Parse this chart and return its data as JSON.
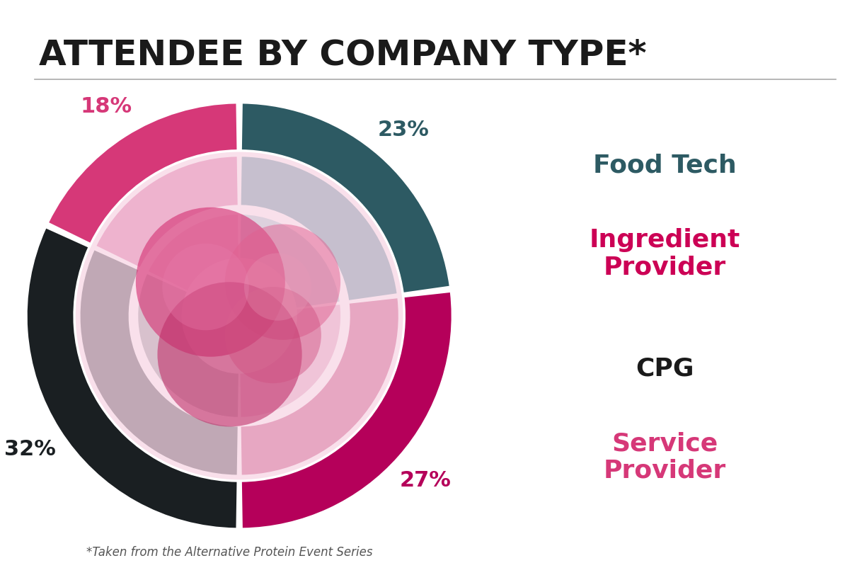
{
  "title": "ATTENDEE BY COMPANY TYPE*",
  "subtitle": "*Taken from the Alternative Protein Event Series",
  "segments": [
    {
      "label": "Food Tech",
      "pct": 23,
      "color": "#2d5a63",
      "pct_color": "#2d5a63"
    },
    {
      "label": "Service\nProvider",
      "pct": 27,
      "color": "#b5005a",
      "pct_color": "#b5005a"
    },
    {
      "label": "CPG",
      "pct": 32,
      "color": "#1a1f22",
      "pct_color": "#1a1f22"
    },
    {
      "label": "Ingredient\nProvider",
      "pct": 18,
      "color": "#d63878",
      "pct_color": "#d63878"
    }
  ],
  "outer_ring_colors": [
    "#2d5a63",
    "#b5005a",
    "#1a1f22",
    "#d63878"
  ],
  "mid_ring_colors": [
    "#6a9ea8",
    "#cc5585",
    "#555a5e",
    "#e07aaa"
  ],
  "inner_fill_colors": [
    "#a0c8d0",
    "#e0a0bf",
    "#909498",
    "#f0b8d0"
  ],
  "background_color": "#ffffff",
  "title_fontsize": 36,
  "pct_fontsize": 22,
  "legend_fontsize": 26,
  "subtitle_fontsize": 12,
  "legend_items": [
    {
      "label": "Food Tech",
      "color": "#2d5a63"
    },
    {
      "label": "Ingredient\nProvider",
      "color": "#cc0055"
    },
    {
      "label": "CPG",
      "color": "#1a1a1a"
    },
    {
      "label": "Service\nProvider",
      "color": "#d63878"
    }
  ]
}
